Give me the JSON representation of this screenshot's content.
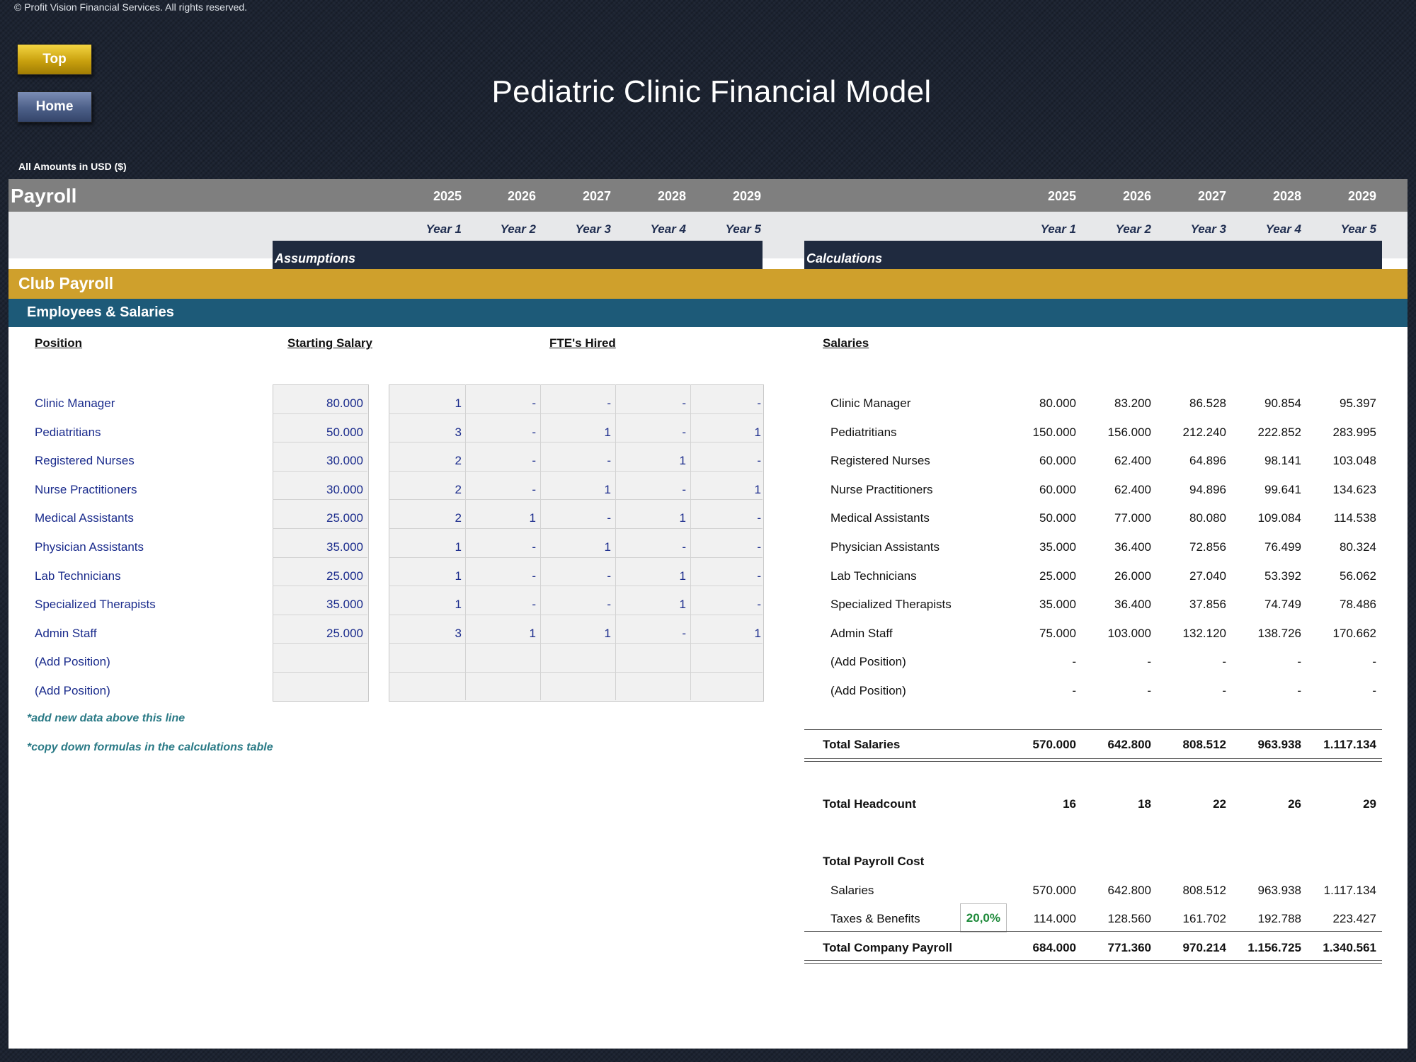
{
  "copyright": "© Profit Vision Financial Services. All rights reserved.",
  "nav": {
    "top_label": "Top",
    "home_label": "Home"
  },
  "title": "Pediatric Clinic Financial Model",
  "amounts_note": "All Amounts in  USD ($)",
  "sheet": {
    "name": "Payroll",
    "years": [
      "2025",
      "2026",
      "2027",
      "2028",
      "2029"
    ],
    "year_labels": [
      "Year 1",
      "Year 2",
      "Year 3",
      "Year 4",
      "Year 5"
    ],
    "assumptions_label": "Assumptions",
    "calculations_label": "Calculations",
    "section_title": "Club Payroll",
    "subsection_title": "Employees & Salaries",
    "col_position": "Position",
    "col_salary": "Starting Salary",
    "col_fte": "FTE's Hired",
    "col_salaries": "Salaries"
  },
  "positions": [
    {
      "name": "Clinic Manager",
      "salary": "80.000",
      "fte": [
        "1",
        "-",
        "-",
        "-",
        "-"
      ],
      "calc": [
        "80.000",
        "83.200",
        "86.528",
        "90.854",
        "95.397"
      ]
    },
    {
      "name": "Pediatritians",
      "salary": "50.000",
      "fte": [
        "3",
        "-",
        "1",
        "-",
        "1"
      ],
      "calc": [
        "150.000",
        "156.000",
        "212.240",
        "222.852",
        "283.995"
      ]
    },
    {
      "name": "Registered Nurses",
      "salary": "30.000",
      "fte": [
        "2",
        "-",
        "-",
        "1",
        "-"
      ],
      "calc": [
        "60.000",
        "62.400",
        "64.896",
        "98.141",
        "103.048"
      ]
    },
    {
      "name": "Nurse Practitioners",
      "salary": "30.000",
      "fte": [
        "2",
        "-",
        "1",
        "-",
        "1"
      ],
      "calc": [
        "60.000",
        "62.400",
        "94.896",
        "99.641",
        "134.623"
      ]
    },
    {
      "name": "Medical Assistants",
      "salary": "25.000",
      "fte": [
        "2",
        "1",
        "-",
        "1",
        "-"
      ],
      "calc": [
        "50.000",
        "77.000",
        "80.080",
        "109.084",
        "114.538"
      ]
    },
    {
      "name": "Physician Assistants",
      "salary": "35.000",
      "fte": [
        "1",
        "-",
        "1",
        "-",
        "-"
      ],
      "calc": [
        "35.000",
        "36.400",
        "72.856",
        "76.499",
        "80.324"
      ]
    },
    {
      "name": "Lab Technicians",
      "salary": "25.000",
      "fte": [
        "1",
        "-",
        "-",
        "1",
        "-"
      ],
      "calc": [
        "25.000",
        "26.000",
        "27.040",
        "53.392",
        "56.062"
      ]
    },
    {
      "name": "Specialized Therapists",
      "salary": "35.000",
      "fte": [
        "1",
        "-",
        "-",
        "1",
        "-"
      ],
      "calc": [
        "35.000",
        "36.400",
        "37.856",
        "74.749",
        "78.486"
      ]
    },
    {
      "name": "Admin Staff",
      "salary": "25.000",
      "fte": [
        "3",
        "1",
        "1",
        "-",
        "1"
      ],
      "calc": [
        "75.000",
        "103.000",
        "132.120",
        "138.726",
        "170.662"
      ]
    },
    {
      "name": "(Add Position)",
      "salary": "",
      "fte": [
        "",
        "",
        "",
        "",
        ""
      ],
      "calc": [
        "-",
        "-",
        "-",
        "-",
        "-"
      ]
    },
    {
      "name": "(Add Position)",
      "salary": "",
      "fte": [
        "",
        "",
        "",
        "",
        ""
      ],
      "calc": [
        "-",
        "-",
        "-",
        "-",
        "-"
      ]
    }
  ],
  "notes": [
    "*add new data above this line",
    "*copy down formulas in the calculations table"
  ],
  "totals": {
    "total_salaries_label": "Total Salaries",
    "total_salaries": [
      "570.000",
      "642.800",
      "808.512",
      "963.938",
      "1.117.134"
    ],
    "total_headcount_label": "Total Headcount",
    "total_headcount": [
      "16",
      "18",
      "22",
      "26",
      "29"
    ],
    "total_payroll_cost_label": "Total Payroll Cost",
    "salaries_label": "Salaries",
    "salaries": [
      "570.000",
      "642.800",
      "808.512",
      "963.938",
      "1.117.134"
    ],
    "taxes_label": "Taxes & Benefits",
    "taxes_rate": "20,0%",
    "taxes": [
      "114.000",
      "128.560",
      "161.702",
      "192.788",
      "223.427"
    ],
    "company_payroll_label": "Total Company Payroll",
    "company_payroll": [
      "684.000",
      "771.360",
      "970.214",
      "1.156.725",
      "1.340.561"
    ]
  }
}
